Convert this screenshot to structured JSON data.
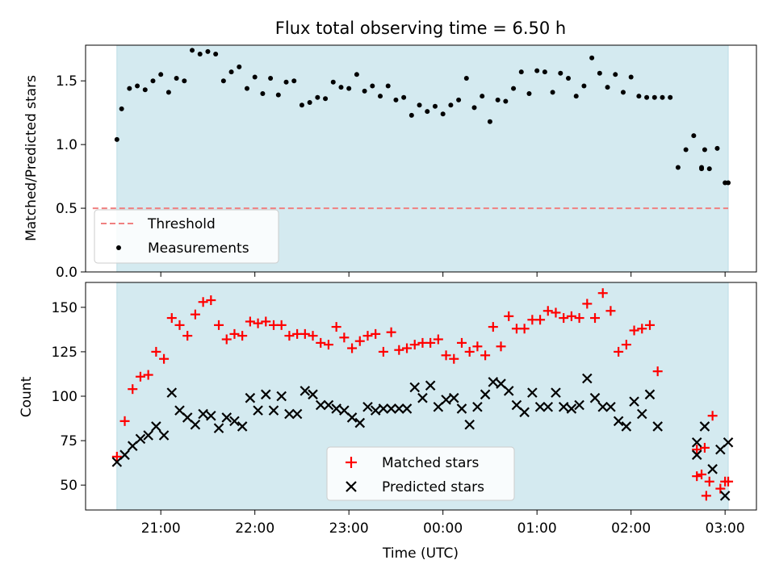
{
  "chart_data": [
    {
      "type": "scatter",
      "title": "Flux total observing time = 6.50 h",
      "xlabel": "",
      "ylabel": "Matched/Predicted stars",
      "ylim": [
        0,
        1.78
      ],
      "yticks": [
        0.0,
        0.5,
        1.0,
        1.5
      ],
      "ytick_labels": [
        "0.0",
        "0.5",
        "1.0",
        "1.5"
      ],
      "observing_window": [
        "20:32",
        "03:02"
      ],
      "observing_window_color": "#d4eaf0",
      "threshold": 0.5,
      "threshold_color": "#f08080",
      "point_color": "#000000",
      "legend": {
        "position": "lower-left",
        "threshold_label": "Threshold",
        "measurements_label": "Measurements"
      },
      "series": [
        {
          "name": "Measurements",
          "x": [
            "20:32",
            "20:35",
            "20:40",
            "20:45",
            "20:50",
            "20:55",
            "21:00",
            "21:05",
            "21:10",
            "21:15",
            "21:20",
            "21:25",
            "21:30",
            "21:35",
            "21:40",
            "21:45",
            "21:50",
            "21:55",
            "22:00",
            "22:05",
            "22:10",
            "22:15",
            "22:20",
            "22:25",
            "22:30",
            "22:35",
            "22:40",
            "22:45",
            "22:50",
            "22:55",
            "23:00",
            "23:05",
            "23:10",
            "23:15",
            "23:20",
            "23:25",
            "23:30",
            "23:35",
            "23:40",
            "23:45",
            "23:50",
            "23:55",
            "00:00",
            "00:05",
            "00:10",
            "00:15",
            "00:20",
            "00:25",
            "00:30",
            "00:35",
            "00:40",
            "00:45",
            "00:50",
            "00:55",
            "01:00",
            "01:05",
            "01:10",
            "01:15",
            "01:20",
            "01:25",
            "01:30",
            "01:35",
            "01:40",
            "01:45",
            "01:50",
            "01:55",
            "02:00",
            "02:05",
            "02:10",
            "02:15",
            "02:20",
            "02:25",
            "02:30",
            "02:35",
            "02:40",
            "02:45",
            "02:50",
            "02:55",
            "03:00",
            "02:45",
            "02:47",
            "03:02"
          ],
          "y": [
            1.04,
            1.28,
            1.44,
            1.46,
            1.43,
            1.5,
            1.55,
            1.41,
            1.52,
            1.5,
            1.74,
            1.71,
            1.73,
            1.71,
            1.5,
            1.57,
            1.61,
            1.44,
            1.53,
            1.4,
            1.52,
            1.39,
            1.49,
            1.5,
            1.31,
            1.33,
            1.37,
            1.36,
            1.49,
            1.45,
            1.44,
            1.55,
            1.42,
            1.46,
            1.38,
            1.46,
            1.35,
            1.37,
            1.23,
            1.31,
            1.26,
            1.3,
            1.24,
            1.31,
            1.35,
            1.52,
            1.29,
            1.38,
            1.18,
            1.35,
            1.34,
            1.44,
            1.57,
            1.4,
            1.58,
            1.57,
            1.41,
            1.56,
            1.52,
            1.38,
            1.46,
            1.68,
            1.56,
            1.45,
            1.55,
            1.41,
            1.53,
            1.38,
            1.37,
            1.37,
            1.37,
            1.37,
            0.82,
            0.96,
            1.07,
            0.81,
            0.81,
            0.97,
            0.7,
            0.82,
            0.96,
            0.7
          ]
        }
      ]
    },
    {
      "type": "scatter",
      "title": "",
      "xlabel": "Time (UTC)",
      "ylabel": "Count",
      "ylim": [
        36,
        164
      ],
      "yticks": [
        50,
        75,
        100,
        125,
        150
      ],
      "ytick_labels": [
        "50",
        "75",
        "100",
        "125",
        "150"
      ],
      "xticks": [
        "21:00",
        "22:00",
        "23:00",
        "00:00",
        "01:00",
        "02:00",
        "03:00"
      ],
      "xtick_labels": [
        "21:00",
        "22:00",
        "23:00",
        "00:00",
        "01:00",
        "02:00",
        "03:00"
      ],
      "observing_window": [
        "20:32",
        "03:02"
      ],
      "observing_window_color": "#d4eaf0",
      "legend": {
        "position": "lower-center"
      },
      "series": [
        {
          "name": "Matched stars",
          "marker": "plus",
          "color": "#ff0000",
          "x": [
            "20:32",
            "20:37",
            "20:42",
            "20:47",
            "20:52",
            "20:57",
            "21:02",
            "21:07",
            "21:12",
            "21:17",
            "21:22",
            "21:27",
            "21:32",
            "21:37",
            "21:42",
            "21:47",
            "21:52",
            "21:57",
            "22:02",
            "22:07",
            "22:12",
            "22:17",
            "22:22",
            "22:27",
            "22:32",
            "22:37",
            "22:42",
            "22:47",
            "22:52",
            "22:57",
            "23:02",
            "23:07",
            "23:12",
            "23:17",
            "23:22",
            "23:27",
            "23:32",
            "23:37",
            "23:42",
            "23:47",
            "23:52",
            "23:57",
            "00:02",
            "00:07",
            "00:12",
            "00:17",
            "00:22",
            "00:27",
            "00:32",
            "00:37",
            "00:42",
            "00:47",
            "00:52",
            "00:57",
            "01:02",
            "01:07",
            "01:12",
            "01:17",
            "01:22",
            "01:27",
            "01:32",
            "01:37",
            "01:42",
            "01:47",
            "01:52",
            "01:57",
            "02:02",
            "02:07",
            "02:12",
            "02:17",
            "02:42",
            "02:47",
            "02:52",
            "02:57",
            "03:02",
            "02:42",
            "02:45",
            "02:48",
            "02:50",
            "03:00"
          ],
          "y": [
            66,
            86,
            104,
            111,
            112,
            125,
            121,
            144,
            140,
            134,
            146,
            153,
            154,
            140,
            132,
            135,
            134,
            142,
            141,
            142,
            140,
            140,
            134,
            135,
            135,
            134,
            130,
            129,
            139,
            133,
            127,
            131,
            134,
            135,
            125,
            136,
            126,
            127,
            129,
            130,
            130,
            132,
            123,
            121,
            130,
            125,
            128,
            123,
            139,
            128,
            145,
            138,
            138,
            143,
            143,
            148,
            147,
            144,
            145,
            144,
            152,
            144,
            158,
            148,
            125,
            129,
            137,
            138,
            140,
            114,
            55,
            71,
            89,
            48,
            52,
            70,
            56,
            44,
            52,
            52
          ]
        },
        {
          "name": "Predicted stars",
          "marker": "x",
          "color": "#000000",
          "x": [
            "20:32",
            "20:37",
            "20:42",
            "20:47",
            "20:52",
            "20:57",
            "21:02",
            "21:07",
            "21:12",
            "21:17",
            "21:22",
            "21:27",
            "21:32",
            "21:37",
            "21:42",
            "21:47",
            "21:52",
            "21:57",
            "22:02",
            "22:07",
            "22:12",
            "22:17",
            "22:22",
            "22:27",
            "22:32",
            "22:37",
            "22:42",
            "22:47",
            "22:52",
            "22:57",
            "23:02",
            "23:07",
            "23:12",
            "23:17",
            "23:22",
            "23:27",
            "23:32",
            "23:37",
            "23:42",
            "23:47",
            "23:52",
            "23:57",
            "00:02",
            "00:07",
            "00:12",
            "00:17",
            "00:22",
            "00:27",
            "00:32",
            "00:37",
            "00:42",
            "00:47",
            "00:52",
            "00:57",
            "01:02",
            "01:07",
            "01:12",
            "01:17",
            "01:22",
            "01:27",
            "01:32",
            "01:37",
            "01:42",
            "01:47",
            "01:52",
            "01:57",
            "02:02",
            "02:07",
            "02:12",
            "02:17",
            "02:42",
            "02:42",
            "02:47",
            "02:52",
            "02:57",
            "03:00",
            "03:02"
          ],
          "y": [
            63,
            67,
            72,
            76,
            78,
            83,
            78,
            102,
            92,
            88,
            84,
            90,
            89,
            82,
            88,
            86,
            83,
            99,
            92,
            101,
            92,
            100,
            90,
            90,
            103,
            101,
            95,
            95,
            93,
            92,
            88,
            85,
            94,
            92,
            93,
            93,
            93,
            93,
            105,
            99,
            106,
            94,
            98,
            99,
            93,
            84,
            94,
            101,
            108,
            107,
            103,
            95,
            91,
            102,
            94,
            94,
            102,
            94,
            93,
            95,
            110,
            99,
            94,
            94,
            86,
            83,
            97,
            90,
            101,
            83,
            67,
            74,
            83,
            59,
            70,
            44,
            74
          ]
        }
      ]
    }
  ]
}
